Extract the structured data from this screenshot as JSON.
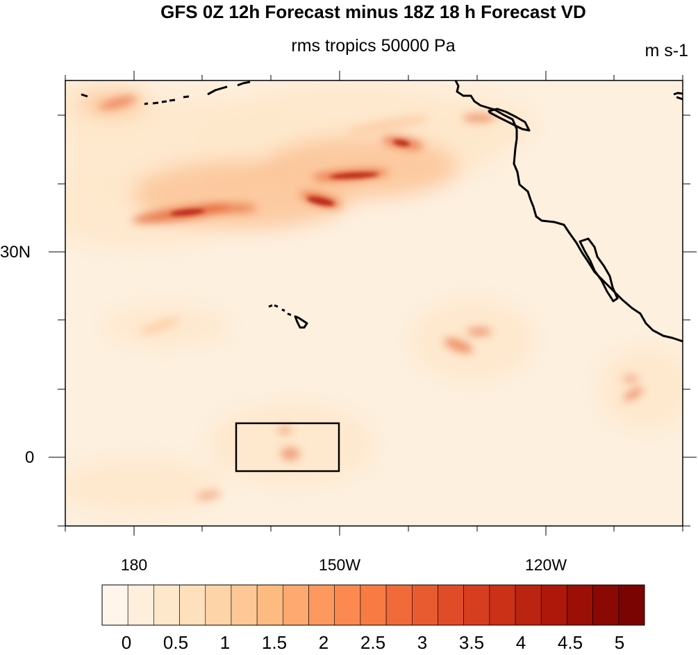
{
  "title": "GFS 0Z 12h Forecast minus 18Z 18 h Forecast VD",
  "subtitle": "rms tropics 50000 Pa",
  "units": "m s-1",
  "lat_labels": [
    "30N",
    "0"
  ],
  "lon_labels": [
    "180",
    "150W",
    "120W"
  ],
  "colorbar": {
    "labels": [
      "0",
      "0.5",
      "1",
      "1.5",
      "2",
      "2.5",
      "3",
      "3.5",
      "4",
      "4.5",
      "5"
    ],
    "colors": [
      "#fff5eb",
      "#feefdc",
      "#fee8cc",
      "#fee1bc",
      "#fdd4a8",
      "#fdc895",
      "#fdbb81",
      "#fda970",
      "#fd985f",
      "#fb8950",
      "#f77b43",
      "#f06a3a",
      "#e85b30",
      "#e04c27",
      "#d63e1f",
      "#ca3117",
      "#bb2410",
      "#ad180a",
      "#9b0f06",
      "#8a0904",
      "#7a0402"
    ]
  },
  "field": {
    "base_color": "#fee8cc",
    "background_color": "#fdf0df",
    "highlight_color": "#fcc79b",
    "strong_color": "#e2582a",
    "peak_color": "#b01a0c"
  }
}
